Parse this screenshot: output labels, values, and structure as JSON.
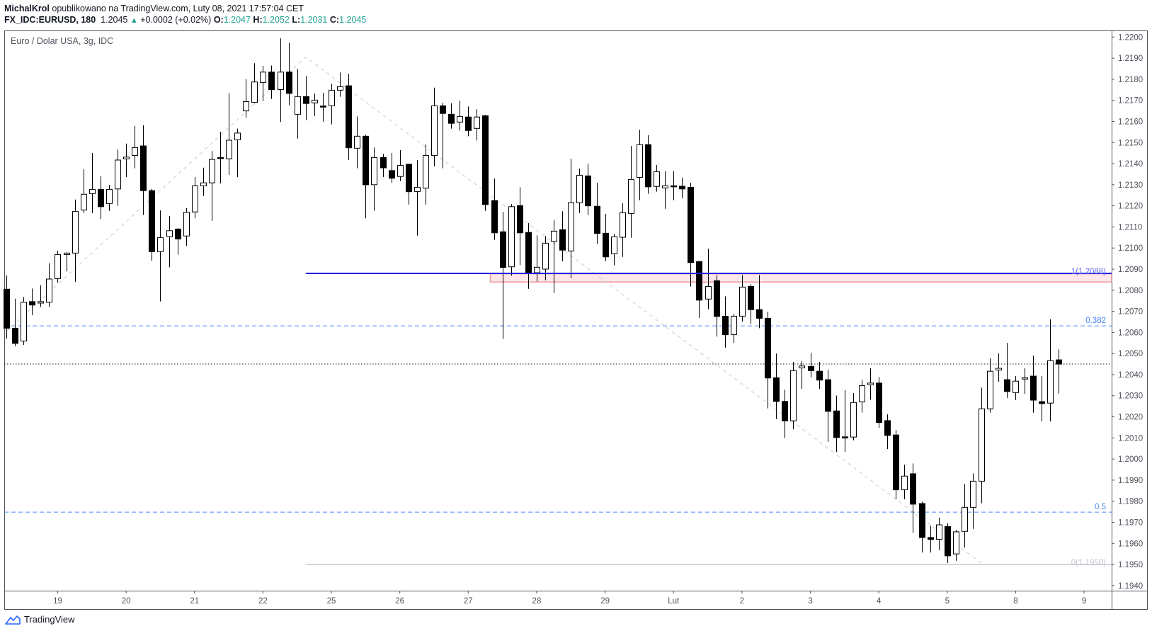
{
  "header": {
    "author": "MichalKrol",
    "published": " opublikowano na TradingView.com, Luty 08, 2021 17:57:04 CET",
    "symbol": "FX_IDC:EURUSD, 180",
    "last": "1.2045",
    "change": "+0.0002 (+0.02%)",
    "o_label": "O:",
    "o": "1.2047",
    "h_label": "H:",
    "h": "1.2052",
    "l_label": "L:",
    "l": "1.2031",
    "c_label": "C:",
    "c": "1.2045"
  },
  "legend": "Euro / Dolar USA, 3g, IDC",
  "footer": {
    "brand": "TradingView"
  },
  "colors": {
    "teal": "#22a394",
    "blue_line": "#1f1fe6",
    "fib_dash": "#4a8af4",
    "zone_border": "#f09a9a",
    "zone_fill": "#fce8e8",
    "zero_line": "#d1d4dc"
  },
  "chart_data": {
    "type": "candlestick",
    "ylim": [
      1.1937,
      1.2203
    ],
    "price_ticks": [
      "1.2200",
      "1.2190",
      "1.2180",
      "1.2170",
      "1.2160",
      "1.2150",
      "1.2140",
      "1.2130",
      "1.2120",
      "1.2110",
      "1.2100",
      "1.2090",
      "1.2080",
      "1.2070",
      "1.2060",
      "1.2050",
      "1.2040",
      "1.2030",
      "1.2020",
      "1.2010",
      "1.2000",
      "1.1990",
      "1.1980",
      "1.1970",
      "1.1960",
      "1.1950",
      "1.1940"
    ],
    "time_ticks": [
      {
        "label": "19",
        "index": 6
      },
      {
        "label": "20",
        "index": 14
      },
      {
        "label": "21",
        "index": 22
      },
      {
        "label": "22",
        "index": 30
      },
      {
        "label": "25",
        "index": 38
      },
      {
        "label": "26",
        "index": 46
      },
      {
        "label": "27",
        "index": 54
      },
      {
        "label": "28",
        "index": 62
      },
      {
        "label": "29",
        "index": 70
      },
      {
        "label": "Lut",
        "index": 78
      },
      {
        "label": "2",
        "index": 86
      },
      {
        "label": "3",
        "index": 94
      },
      {
        "label": "4",
        "index": 102
      },
      {
        "label": "5",
        "index": 110
      },
      {
        "label": "8",
        "index": 118
      },
      {
        "label": "9",
        "index": 126
      }
    ],
    "last_price": 1.2045,
    "ohlc": [
      [
        1.20805,
        1.2087,
        1.2057,
        1.2062
      ],
      [
        1.2062,
        1.2076,
        1.20534,
        1.20548
      ],
      [
        1.20559,
        1.20768,
        1.20541,
        1.20743
      ],
      [
        1.20746,
        1.20808,
        1.20682,
        1.2073
      ],
      [
        1.20739,
        1.20824,
        1.20721,
        1.20746
      ],
      [
        1.20743,
        1.20928,
        1.20721,
        1.20853
      ],
      [
        1.20855,
        1.20987,
        1.20836,
        1.20969
      ],
      [
        1.20969,
        1.20981,
        1.20889,
        1.20976
      ],
      [
        1.20976,
        1.2123,
        1.20839,
        1.21174
      ],
      [
        1.2118,
        1.21373,
        1.21166,
        1.21255
      ],
      [
        1.21258,
        1.21451,
        1.21166,
        1.21278
      ],
      [
        1.21278,
        1.2134,
        1.21138,
        1.21196
      ],
      [
        1.21211,
        1.21299,
        1.21176,
        1.21278
      ],
      [
        1.2128,
        1.21467,
        1.212,
        1.21417
      ],
      [
        1.21423,
        1.21495,
        1.21336,
        1.21431
      ],
      [
        1.21439,
        1.21579,
        1.21378,
        1.21476
      ],
      [
        1.21484,
        1.21582,
        1.21157,
        1.21272
      ],
      [
        1.21272,
        1.2128,
        1.20939,
        1.20983
      ],
      [
        1.20983,
        1.21178,
        1.20747,
        1.21049
      ],
      [
        1.21054,
        1.21152,
        1.20909,
        1.21082
      ],
      [
        1.2109,
        1.21094,
        1.20969,
        1.21043
      ],
      [
        1.21057,
        1.21189,
        1.2101,
        1.21169
      ],
      [
        1.21171,
        1.21336,
        1.21141,
        1.21295
      ],
      [
        1.21295,
        1.21381,
        1.21247,
        1.21309
      ],
      [
        1.21309,
        1.2146,
        1.21129,
        1.2142
      ],
      [
        1.21429,
        1.21551,
        1.21306,
        1.21425
      ],
      [
        1.21423,
        1.21733,
        1.21347,
        1.21511
      ],
      [
        1.21513,
        1.21566,
        1.21336,
        1.21545
      ],
      [
        1.2165,
        1.218,
        1.21618,
        1.21694
      ],
      [
        1.2169,
        1.21876,
        1.21686,
        1.21787
      ],
      [
        1.21785,
        1.21864,
        1.21696,
        1.21834
      ],
      [
        1.21834,
        1.21865,
        1.21707,
        1.21751
      ],
      [
        1.21751,
        1.21994,
        1.21598,
        1.21834
      ],
      [
        1.21834,
        1.21973,
        1.21677,
        1.21733
      ],
      [
        1.21634,
        1.21849,
        1.21519,
        1.21718
      ],
      [
        1.21718,
        1.21815,
        1.21606,
        1.21685
      ],
      [
        1.21688,
        1.21732,
        1.21626,
        1.21701
      ],
      [
        1.21673,
        1.21736,
        1.21599,
        1.21671
      ],
      [
        1.21674,
        1.21779,
        1.21586,
        1.21748
      ],
      [
        1.21748,
        1.21832,
        1.21717,
        1.21765
      ],
      [
        1.21769,
        1.21826,
        1.21418,
        1.21475
      ],
      [
        1.21473,
        1.21624,
        1.21378,
        1.2153
      ],
      [
        1.2153,
        1.21537,
        1.21141,
        1.213
      ],
      [
        1.213,
        1.21476,
        1.21176,
        1.21429
      ],
      [
        1.21429,
        1.21446,
        1.21337,
        1.2138
      ],
      [
        1.21367,
        1.21451,
        1.21309,
        1.21331
      ],
      [
        1.21339,
        1.21464,
        1.21317,
        1.21392
      ],
      [
        1.21397,
        1.214,
        1.21206,
        1.21267
      ],
      [
        1.21268,
        1.21417,
        1.21059,
        1.21288
      ],
      [
        1.21284,
        1.21491,
        1.21206,
        1.21439
      ],
      [
        1.21439,
        1.2176,
        1.21387,
        1.21674
      ],
      [
        1.21674,
        1.21689,
        1.21378,
        1.21638
      ],
      [
        1.21634,
        1.21686,
        1.21566,
        1.21591
      ],
      [
        1.21597,
        1.21698,
        1.21557,
        1.21624
      ],
      [
        1.21621,
        1.21671,
        1.2153,
        1.21557
      ],
      [
        1.21567,
        1.21658,
        1.2151,
        1.21621
      ],
      [
        1.21627,
        1.21631,
        1.21176,
        1.21206
      ],
      [
        1.21225,
        1.21329,
        1.21039,
        1.21072
      ],
      [
        1.21077,
        1.21171,
        1.20569,
        1.20908
      ],
      [
        1.20911,
        1.21208,
        1.20869,
        1.21196
      ],
      [
        1.21201,
        1.21288,
        1.20919,
        1.21072
      ],
      [
        1.21074,
        1.21118,
        1.20807,
        1.20883
      ],
      [
        1.20883,
        1.2106,
        1.20841,
        1.20909
      ],
      [
        1.209,
        1.21057,
        1.20847,
        1.21023
      ],
      [
        1.21032,
        1.21134,
        1.20787,
        1.2108
      ],
      [
        1.21087,
        1.21174,
        1.20937,
        1.2099
      ],
      [
        1.20986,
        1.21423,
        1.20857,
        1.21215
      ],
      [
        1.21215,
        1.21376,
        1.21166,
        1.21345
      ],
      [
        1.21342,
        1.214,
        1.21156,
        1.212
      ],
      [
        1.21198,
        1.21309,
        1.2102,
        1.21069
      ],
      [
        1.2107,
        1.21162,
        1.20937,
        1.20958
      ],
      [
        1.20973,
        1.21067,
        1.20918,
        1.21053
      ],
      [
        1.21051,
        1.21212,
        1.20958,
        1.21168
      ],
      [
        1.21164,
        1.21484,
        1.21049,
        1.21325
      ],
      [
        1.21335,
        1.21561,
        1.21227,
        1.2149
      ],
      [
        1.2149,
        1.21535,
        1.21257,
        1.2129
      ],
      [
        1.21292,
        1.21394,
        1.21267,
        1.21362
      ],
      [
        1.21285,
        1.21364,
        1.21186,
        1.21295
      ],
      [
        1.21295,
        1.21364,
        1.21227,
        1.21293
      ],
      [
        1.21293,
        1.21334,
        1.21236,
        1.2128
      ],
      [
        1.21288,
        1.2131,
        1.20817,
        1.20931
      ],
      [
        1.20936,
        1.20938,
        1.20669,
        1.20753
      ],
      [
        1.20758,
        1.20997,
        1.2071,
        1.20818
      ],
      [
        1.20845,
        1.20872,
        1.2058,
        1.20676
      ],
      [
        1.20677,
        1.20771,
        1.20528,
        1.20589
      ],
      [
        1.2059,
        1.20687,
        1.2055,
        1.20677
      ],
      [
        1.20677,
        1.20872,
        1.20651,
        1.20815
      ],
      [
        1.20818,
        1.20828,
        1.2064,
        1.20708
      ],
      [
        1.20708,
        1.20872,
        1.2062,
        1.20667
      ],
      [
        1.20667,
        1.20698,
        1.2024,
        1.20384
      ],
      [
        1.20385,
        1.205,
        1.20189,
        1.20273
      ],
      [
        1.20273,
        1.20329,
        1.201,
        1.20181
      ],
      [
        1.20181,
        1.2046,
        1.20141,
        1.20419
      ],
      [
        1.20432,
        1.20464,
        1.20332,
        1.20441
      ],
      [
        1.20439,
        1.20503,
        1.20387,
        1.20419
      ],
      [
        1.20416,
        1.2046,
        1.20332,
        1.20374
      ],
      [
        1.20376,
        1.20424,
        1.20081,
        1.20226
      ],
      [
        1.20228,
        1.20301,
        1.20033,
        1.20102
      ],
      [
        1.20105,
        1.20326,
        1.20033,
        1.20103
      ],
      [
        1.20104,
        1.20313,
        1.20089,
        1.20268
      ],
      [
        1.20271,
        1.20376,
        1.2022,
        1.20348
      ],
      [
        1.20352,
        1.2043,
        1.20281,
        1.2036
      ],
      [
        1.2036,
        1.20389,
        1.20148,
        1.20173
      ],
      [
        1.20182,
        1.20212,
        1.20047,
        1.20112
      ],
      [
        1.20114,
        1.20137,
        1.19809,
        1.19854
      ],
      [
        1.19854,
        1.19973,
        1.19809,
        1.19919
      ],
      [
        1.1993,
        1.19979,
        1.19649,
        1.19786
      ],
      [
        1.19789,
        1.19798,
        1.19557,
        1.19628
      ],
      [
        1.19628,
        1.19684,
        1.19557,
        1.19619
      ],
      [
        1.19619,
        1.19722,
        1.19568,
        1.19688
      ],
      [
        1.1968,
        1.19695,
        1.19507,
        1.19541
      ],
      [
        1.1955,
        1.19664,
        1.19518,
        1.19655
      ],
      [
        1.19657,
        1.19882,
        1.1958,
        1.19771
      ],
      [
        1.19771,
        1.19932,
        1.19669,
        1.19895
      ],
      [
        1.19895,
        1.20338,
        1.1979,
        1.20238
      ],
      [
        1.20238,
        1.20477,
        1.2022,
        1.20416
      ],
      [
        1.20422,
        1.20501,
        1.20366,
        1.2043
      ],
      [
        1.20376,
        1.20551,
        1.20289,
        1.2032
      ],
      [
        1.20315,
        1.20393,
        1.20279,
        1.20369
      ],
      [
        1.20379,
        1.2043,
        1.20309,
        1.20385
      ],
      [
        1.20393,
        1.2049,
        1.2022,
        1.20279
      ],
      [
        1.20272,
        1.20393,
        1.20178,
        1.20263
      ],
      [
        1.20265,
        1.20662,
        1.20178,
        1.20466
      ],
      [
        1.2047,
        1.2052,
        1.2031,
        1.2045
      ]
    ],
    "drawings": {
      "zigzag": [
        {
          "index": 0,
          "price": 1.20605
        },
        {
          "index": 35,
          "price": 1.21905
        },
        {
          "index": 114.2,
          "price": 1.195
        }
      ],
      "level_1": {
        "label": "1(1.2088)",
        "price": 1.2088,
        "from_index": 35
      },
      "level_0": {
        "label": "0(1.1950)",
        "price": 1.195,
        "from_index": 35
      },
      "zone": {
        "top": 1.20878,
        "bottom": 1.20839,
        "from_index": 57
      },
      "fib_0382": {
        "label": "0.382",
        "price": 1.20631
      },
      "fib_05": {
        "label": "0.5",
        "price": 1.19748
      }
    }
  }
}
